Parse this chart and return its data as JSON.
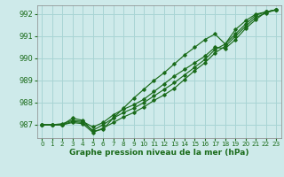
{
  "xlabel": "Graphe pression niveau de la mer (hPa)",
  "bg_color": "#ceeaea",
  "grid_color": "#a8d4d4",
  "line_color": "#1a6b1a",
  "ylim": [
    986.4,
    992.4
  ],
  "xlim": [
    -0.5,
    23.5
  ],
  "yticks": [
    987,
    988,
    989,
    990,
    991,
    992
  ],
  "xticks": [
    0,
    1,
    2,
    3,
    4,
    5,
    6,
    7,
    8,
    9,
    10,
    11,
    12,
    13,
    14,
    15,
    16,
    17,
    18,
    19,
    20,
    21,
    22,
    23
  ],
  "series": [
    [
      987.0,
      987.0,
      987.0,
      987.1,
      987.05,
      986.65,
      986.85,
      987.1,
      987.35,
      987.55,
      987.8,
      988.1,
      988.35,
      988.65,
      989.05,
      989.45,
      989.8,
      990.25,
      990.55,
      991.0,
      991.45,
      991.85,
      992.05,
      992.2
    ],
    [
      987.0,
      987.0,
      987.0,
      987.15,
      987.1,
      986.75,
      987.0,
      987.3,
      987.55,
      987.75,
      988.0,
      988.3,
      988.6,
      988.9,
      989.25,
      989.6,
      989.95,
      990.4,
      990.65,
      991.1,
      991.55,
      991.95,
      992.1,
      992.2
    ],
    [
      987.0,
      987.0,
      987.05,
      987.2,
      987.15,
      986.9,
      987.1,
      987.45,
      987.7,
      987.9,
      988.15,
      988.5,
      988.85,
      989.2,
      989.5,
      989.8,
      990.1,
      990.5,
      990.45,
      990.85,
      991.35,
      991.75,
      992.1,
      992.2
    ],
    [
      987.0,
      987.0,
      987.0,
      987.3,
      987.2,
      986.7,
      986.8,
      987.3,
      987.75,
      988.2,
      988.6,
      989.0,
      989.35,
      989.75,
      990.15,
      990.5,
      990.85,
      991.1,
      990.65,
      991.3,
      991.7,
      992.0,
      992.1,
      992.2
    ]
  ]
}
